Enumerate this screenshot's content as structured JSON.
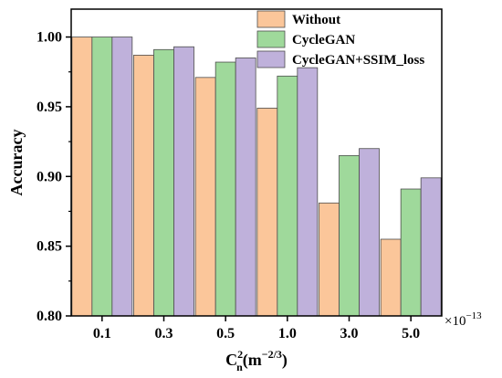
{
  "chart_data": {
    "type": "bar",
    "categories": [
      "0.1",
      "0.3",
      "0.5",
      "1.0",
      "3.0",
      "5.0"
    ],
    "series": [
      {
        "name": "Without",
        "color": "#FBC69A",
        "values": [
          1.0,
          0.987,
          0.971,
          0.949,
          0.881,
          0.855
        ]
      },
      {
        "name": "CycleGAN",
        "color": "#9FD99B",
        "values": [
          1.0,
          0.991,
          0.982,
          0.972,
          0.915,
          0.891
        ]
      },
      {
        "name": "CycleGAN+SSIM_loss",
        "color": "#BFB1DB",
        "values": [
          1.0,
          0.993,
          0.985,
          0.978,
          0.92,
          0.899
        ]
      }
    ],
    "ylabel": "Accuracy",
    "xlabel_base": "C",
    "xlabel_sub": "n",
    "xlabel_sup": "2",
    "xlabel_unit_open": "(m",
    "xlabel_unit_exp": "−2/3",
    "xlabel_unit_close": ")",
    "x_multiplier_base": "×10",
    "x_multiplier_exp": "−13",
    "ylim": [
      0.8,
      1.02
    ],
    "yticks": [
      0.8,
      0.85,
      0.9,
      0.95,
      1.0
    ],
    "ytick_labels": [
      "0.80",
      "0.85",
      "0.90",
      "0.95",
      "1.00"
    ],
    "grid": false,
    "legend_position": "top-right"
  }
}
